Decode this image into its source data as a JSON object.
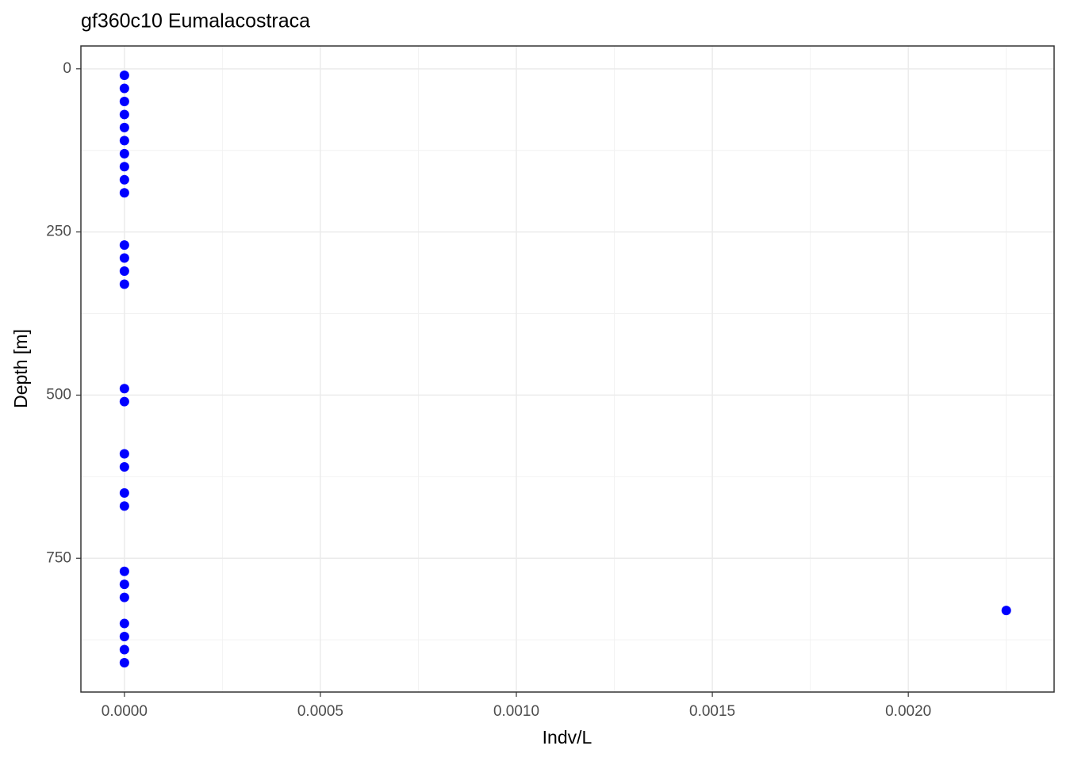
{
  "chart_data": {
    "type": "scatter",
    "title": "gf360c10 Eumalacostraca",
    "xlabel": "Indv/L",
    "ylabel": "Depth [m]",
    "series": [
      {
        "color": "#0000ff",
        "x": [
          0,
          0,
          0,
          0,
          0,
          0,
          0,
          0,
          0,
          0,
          0,
          0,
          0,
          0,
          0,
          0,
          0,
          0,
          0,
          0,
          0,
          0,
          0,
          0.00225,
          0,
          0,
          0,
          0
        ],
        "values": [
          10,
          30,
          50,
          70,
          90,
          110,
          130,
          150,
          170,
          190,
          270,
          290,
          310,
          330,
          490,
          510,
          590,
          610,
          650,
          670,
          770,
          790,
          810,
          830,
          850,
          870,
          890,
          910
        ]
      }
    ],
    "xlim": [
      -0.000111,
      0.002372
    ],
    "xticks": [
      {
        "value": 0,
        "label": "0.0000"
      },
      {
        "value": 0.0005,
        "label": "0.0005"
      },
      {
        "value": 0.001,
        "label": "0.0010"
      },
      {
        "value": 0.0015,
        "label": "0.0015"
      },
      {
        "value": 0.002,
        "label": "0.0020"
      }
    ],
    "ylim": [
      955,
      -35
    ],
    "yticks": [
      0,
      250,
      500,
      750
    ],
    "grid": true
  }
}
